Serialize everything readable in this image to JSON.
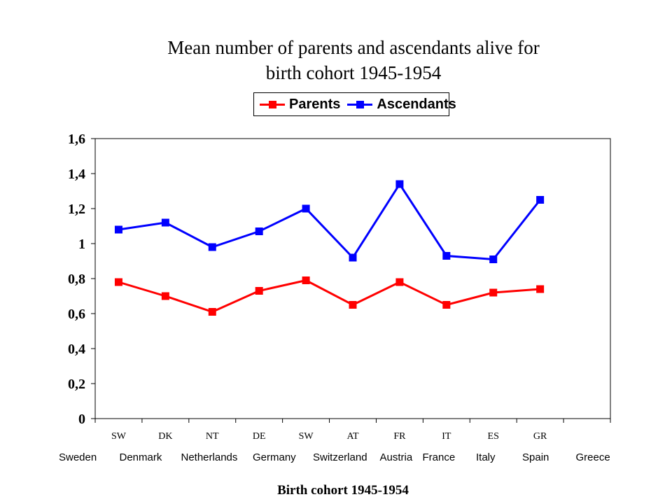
{
  "chart_data": {
    "type": "line",
    "title_lines": [
      "Mean number of parents and ascendants alive for",
      "birth cohort 1945-1954"
    ],
    "xlabel": "Birth cohort 1945-1954",
    "ylabel": "",
    "ylim": [
      0,
      1.6
    ],
    "yticks": [
      "0",
      "0,2",
      "0,4",
      "0,6",
      "0,8",
      "1",
      "1,2",
      "1,4",
      "1,6"
    ],
    "categories": [
      "SW",
      "DK",
      "NT",
      "DE",
      "SW",
      "AT",
      "FR",
      "IT",
      "ES",
      "GR"
    ],
    "country_labels": [
      "Sweden",
      "Denmark",
      "Netherlands",
      "Germany",
      "Switzerland",
      "Austria",
      "France",
      "Italy",
      "Spain",
      "Greece"
    ],
    "grid": false,
    "legend_position": "top",
    "series": [
      {
        "name": "Parents",
        "color": "#ff0000",
        "values": [
          0.78,
          0.7,
          0.61,
          0.73,
          0.79,
          0.65,
          0.78,
          0.65,
          0.72,
          0.74
        ]
      },
      {
        "name": "Ascendants",
        "color": "#0000ff",
        "values": [
          1.08,
          1.12,
          0.98,
          1.07,
          1.2,
          0.92,
          1.34,
          0.93,
          0.91,
          1.25
        ]
      }
    ]
  }
}
